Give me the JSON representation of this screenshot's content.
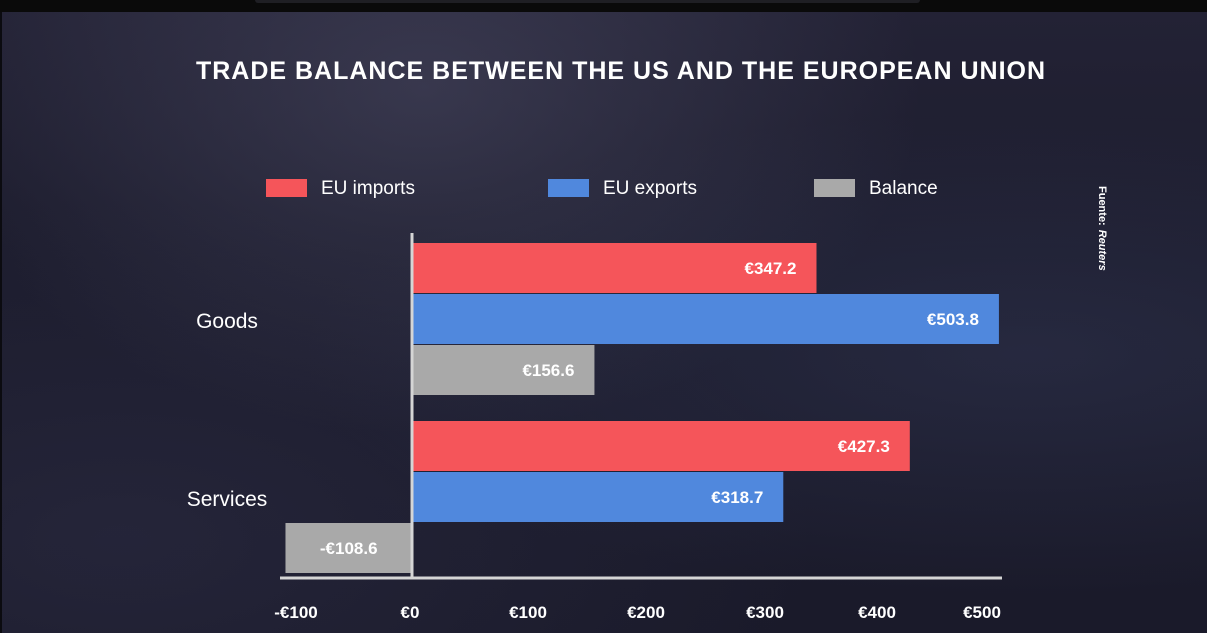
{
  "chart_data": {
    "type": "bar",
    "orientation": "horizontal",
    "title": "TRADE BALANCE BETWEEN THE US AND THE EUROPEAN UNION",
    "categories": [
      "Goods",
      "Services"
    ],
    "series": [
      {
        "name": "EU imports",
        "color": "#f5555a",
        "values": [
          347.2,
          427.3
        ],
        "labels": [
          "€347.2",
          "€427.3"
        ]
      },
      {
        "name": "EU exports",
        "color": "#5088dd",
        "values": [
          503.8,
          318.7
        ],
        "labels": [
          "€503.8",
          "€318.7"
        ]
      },
      {
        "name": "Balance",
        "color": "#a9a9a9",
        "values": [
          156.6,
          -108.6
        ],
        "labels": [
          "€156.6",
          "-€108.6"
        ]
      }
    ],
    "xlim": [
      -100,
      500
    ],
    "x_ticks": [
      -100,
      0,
      100,
      200,
      300,
      400,
      500
    ],
    "x_tick_labels": [
      "-€100",
      "€0",
      "€100",
      "€200",
      "€300",
      "€400",
      "€500"
    ],
    "legend_position": "top",
    "grid": false,
    "source_label": "Fuente:",
    "source_name": "Reuters"
  }
}
